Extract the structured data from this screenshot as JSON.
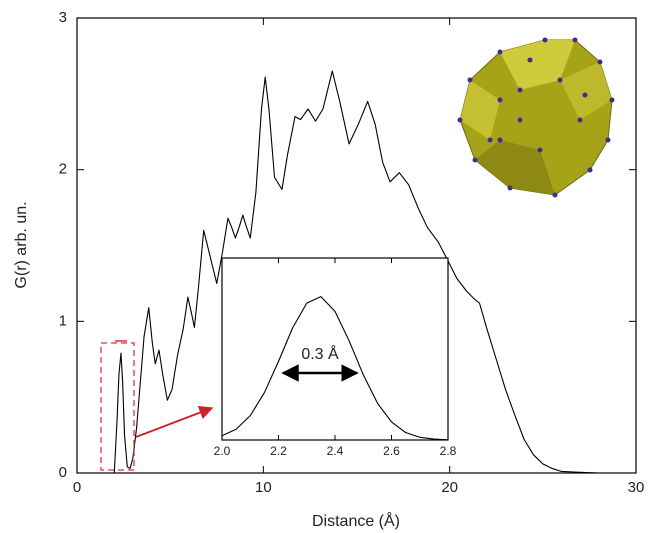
{
  "chart_data": [
    {
      "type": "line",
      "x_label": "Distance (Å)",
      "y_label": "G(r) arb. un.",
      "x": [
        2.0,
        2.15,
        2.25,
        2.36,
        2.45,
        2.55,
        2.7,
        2.85,
        3.0,
        3.2,
        3.4,
        3.6,
        3.85,
        4.05,
        4.2,
        4.4,
        4.6,
        4.85,
        5.1,
        5.4,
        5.7,
        5.95,
        6.15,
        6.3,
        6.5,
        6.8,
        7.1,
        7.5,
        7.8,
        8.1,
        8.3,
        8.5,
        8.7,
        8.9,
        9.1,
        9.3,
        9.6,
        9.9,
        10.1,
        10.3,
        10.6,
        11.0,
        11.3,
        11.7,
        12.0,
        12.4,
        12.8,
        13.2,
        13.7,
        14.1,
        14.6,
        15.1,
        15.6,
        16.0,
        16.4,
        16.8,
        17.3,
        17.8,
        18.3,
        18.8,
        19.4,
        19.9,
        20.4,
        20.9,
        21.3,
        21.6,
        22.0,
        22.5,
        23.0,
        23.5,
        24.0,
        24.5,
        25.0,
        25.5,
        26.0,
        27.0,
        28.0
      ],
      "values": [
        0,
        0.35,
        0.65,
        0.79,
        0.6,
        0.25,
        0.04,
        0.03,
        0.1,
        0.3,
        0.6,
        0.9,
        1.09,
        0.85,
        0.72,
        0.81,
        0.65,
        0.48,
        0.55,
        0.78,
        0.95,
        1.16,
        1.05,
        0.96,
        1.2,
        1.6,
        1.45,
        1.25,
        1.45,
        1.68,
        1.62,
        1.55,
        1.62,
        1.7,
        1.62,
        1.55,
        1.85,
        2.4,
        2.61,
        2.4,
        1.95,
        1.87,
        2.1,
        2.35,
        2.33,
        2.4,
        2.32,
        2.4,
        2.65,
        2.45,
        2.17,
        2.3,
        2.45,
        2.3,
        2.05,
        1.92,
        1.98,
        1.9,
        1.75,
        1.62,
        1.52,
        1.4,
        1.28,
        1.2,
        1.15,
        1.12,
        0.95,
        0.75,
        0.55,
        0.38,
        0.22,
        0.12,
        0.06,
        0.03,
        0.01,
        0.005,
        0
      ],
      "color": "#000000",
      "xlim": [
        0,
        30
      ],
      "xticks": [
        0,
        10,
        20,
        30
      ],
      "ylim": [
        0,
        3
      ],
      "yticks": [
        0,
        1,
        2,
        3
      ]
    },
    {
      "type": "line",
      "annotation": "0.3 Å",
      "x": [
        2.0,
        2.05,
        2.1,
        2.15,
        2.2,
        2.25,
        2.3,
        2.35,
        2.4,
        2.45,
        2.5,
        2.55,
        2.6,
        2.65,
        2.7,
        2.75,
        2.8
      ],
      "values": [
        0.023,
        0.059,
        0.134,
        0.26,
        0.432,
        0.616,
        0.752,
        0.788,
        0.707,
        0.545,
        0.359,
        0.203,
        0.099,
        0.041,
        0.015,
        0.005,
        0.001
      ],
      "color": "#000000",
      "xlim": [
        2.0,
        2.8
      ],
      "xticks": [
        {
          "value": 2.0,
          "label": "2.0"
        },
        2.2,
        2.4,
        2.6,
        2.8
      ],
      "ylim": [
        0,
        1
      ]
    }
  ]
}
